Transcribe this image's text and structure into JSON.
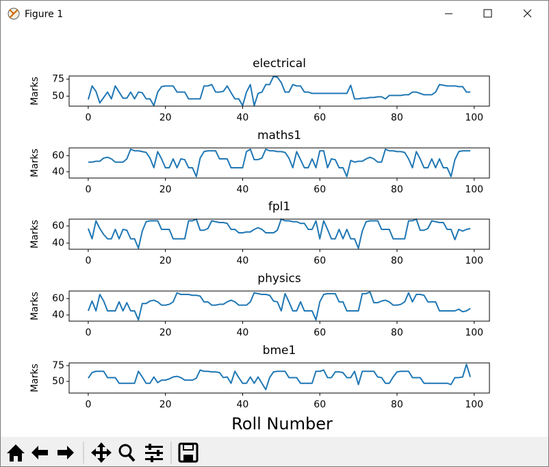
{
  "window": {
    "title": "Figure 1"
  },
  "chart_data": [
    {
      "type": "line",
      "title": "electrical",
      "y_label": "Marks",
      "color": "#1f77b4",
      "x": [
        0,
        1,
        2,
        3,
        4,
        5,
        6,
        7,
        8,
        9,
        10,
        11,
        12,
        13,
        14,
        15,
        16,
        17,
        18,
        19,
        20,
        21,
        22,
        23,
        24,
        25,
        26,
        27,
        28,
        29,
        30,
        31,
        32,
        33,
        34,
        35,
        36,
        37,
        38,
        39,
        40,
        41,
        42,
        43,
        44,
        45,
        46,
        47,
        48,
        49,
        50,
        51,
        52,
        53,
        54,
        55,
        56,
        57,
        58,
        59,
        60,
        61,
        62,
        63,
        64,
        65,
        66,
        67,
        68,
        69,
        70,
        71,
        72,
        73,
        74,
        75,
        76,
        77,
        78,
        79,
        80,
        81,
        82,
        83,
        84,
        85,
        86,
        87,
        88,
        89,
        90,
        91,
        92,
        93,
        94,
        95,
        96,
        97,
        98,
        99
      ],
      "values": [
        45,
        65,
        57,
        40,
        48,
        56,
        46,
        65,
        56,
        47,
        47,
        56,
        46,
        56,
        55,
        46,
        46,
        36,
        56,
        64,
        65,
        65,
        65,
        56,
        56,
        56,
        46,
        46,
        46,
        46,
        65,
        65,
        67,
        56,
        56,
        57,
        65,
        55,
        46,
        46,
        36,
        56,
        67,
        36,
        54,
        56,
        67,
        67,
        79,
        78,
        70,
        56,
        56,
        67,
        65,
        65,
        56,
        56,
        54,
        54,
        54,
        54,
        54,
        54,
        54,
        54,
        54,
        54,
        66,
        46,
        46,
        47,
        47,
        48,
        48,
        49,
        49,
        46,
        51,
        51,
        51,
        51,
        52,
        52,
        56,
        56,
        54,
        52,
        52,
        52,
        56,
        67,
        66,
        65,
        65,
        65,
        64,
        64,
        56,
        56
      ],
      "xlim": [
        -4.95,
        103.95
      ],
      "xticks": [
        0,
        20,
        40,
        60,
        80,
        100
      ],
      "ylim": [
        35.3,
        79.6
      ],
      "yticks": [
        50,
        75
      ]
    },
    {
      "type": "line",
      "title": "maths1",
      "y_label": "Marks",
      "color": "#1f77b4",
      "x": [
        0,
        1,
        2,
        3,
        4,
        5,
        6,
        7,
        8,
        9,
        10,
        11,
        12,
        13,
        14,
        15,
        16,
        17,
        18,
        19,
        20,
        21,
        22,
        23,
        24,
        25,
        26,
        27,
        28,
        29,
        30,
        31,
        32,
        33,
        34,
        35,
        36,
        37,
        38,
        39,
        40,
        41,
        42,
        43,
        44,
        45,
        46,
        47,
        48,
        49,
        50,
        51,
        52,
        53,
        54,
        55,
        56,
        57,
        58,
        59,
        60,
        61,
        62,
        63,
        64,
        65,
        66,
        67,
        68,
        69,
        70,
        71,
        72,
        73,
        74,
        75,
        76,
        77,
        78,
        79,
        80,
        81,
        82,
        83,
        84,
        85,
        86,
        87,
        88,
        89,
        90,
        91,
        92,
        93,
        94,
        95,
        96,
        97,
        98,
        99
      ],
      "values": [
        52,
        52,
        53,
        53,
        57,
        58,
        56,
        52,
        52,
        52,
        56,
        68,
        66,
        66,
        65,
        64,
        57,
        45,
        65,
        56,
        45,
        45,
        56,
        45,
        56,
        55,
        45,
        45,
        34,
        57,
        65,
        66,
        66,
        66,
        56,
        56,
        56,
        45,
        45,
        45,
        45,
        65,
        68,
        55,
        55,
        57,
        68,
        66,
        66,
        65,
        65,
        64,
        57,
        45,
        65,
        55,
        45,
        45,
        56,
        45,
        66,
        66,
        45,
        56,
        55,
        45,
        45,
        34,
        54,
        52,
        53,
        53,
        56,
        58,
        56,
        52,
        52,
        68,
        66,
        66,
        65,
        65,
        64,
        56,
        45,
        65,
        56,
        45,
        45,
        56,
        45,
        56,
        45,
        45,
        34,
        55,
        65,
        66,
        66,
        66
      ],
      "xlim": [
        -4.95,
        103.95
      ],
      "xticks": [
        0,
        20,
        40,
        60,
        80,
        100
      ],
      "ylim": [
        32.2,
        69.6
      ],
      "yticks": [
        40,
        60
      ]
    },
    {
      "type": "line",
      "title": "fpl1",
      "y_label": "Marks",
      "color": "#1f77b4",
      "x": [
        0,
        1,
        2,
        3,
        4,
        5,
        6,
        7,
        8,
        9,
        10,
        11,
        12,
        13,
        14,
        15,
        16,
        17,
        18,
        19,
        20,
        21,
        22,
        23,
        24,
        25,
        26,
        27,
        28,
        29,
        30,
        31,
        32,
        33,
        34,
        35,
        36,
        37,
        38,
        39,
        40,
        41,
        42,
        43,
        44,
        45,
        46,
        47,
        48,
        49,
        50,
        51,
        52,
        53,
        54,
        55,
        56,
        57,
        58,
        59,
        60,
        61,
        62,
        63,
        64,
        65,
        66,
        67,
        68,
        69,
        70,
        71,
        72,
        73,
        74,
        75,
        76,
        77,
        78,
        79,
        80,
        81,
        82,
        83,
        84,
        85,
        86,
        87,
        88,
        89,
        90,
        91,
        92,
        93,
        94,
        95,
        96,
        97,
        98,
        99
      ],
      "values": [
        57,
        45,
        66,
        57,
        50,
        45,
        45,
        56,
        45,
        56,
        55,
        45,
        45,
        34,
        54,
        65,
        66,
        66,
        66,
        56,
        56,
        56,
        45,
        45,
        45,
        45,
        66,
        66,
        68,
        55,
        55,
        57,
        66,
        65,
        64,
        64,
        63,
        56,
        56,
        52,
        52,
        53,
        53,
        56,
        58,
        56,
        52,
        52,
        52,
        55,
        68,
        66,
        66,
        65,
        65,
        63,
        63,
        56,
        56,
        66,
        45,
        66,
        56,
        45,
        45,
        56,
        45,
        56,
        45,
        45,
        34,
        54,
        65,
        66,
        66,
        66,
        56,
        56,
        56,
        45,
        45,
        45,
        45,
        66,
        66,
        68,
        55,
        55,
        57,
        66,
        65,
        64,
        64,
        56,
        56,
        44,
        56,
        54,
        56,
        57
      ],
      "xlim": [
        -4.95,
        103.95
      ],
      "xticks": [
        0,
        20,
        40,
        60,
        80,
        100
      ],
      "ylim": [
        32.8,
        68
      ],
      "yticks": [
        40,
        60
      ]
    },
    {
      "type": "line",
      "title": "physics",
      "y_label": "Marks",
      "color": "#1f77b4",
      "x": [
        0,
        1,
        2,
        3,
        4,
        5,
        6,
        7,
        8,
        9,
        10,
        11,
        12,
        13,
        14,
        15,
        16,
        17,
        18,
        19,
        20,
        21,
        22,
        23,
        24,
        25,
        26,
        27,
        28,
        29,
        30,
        31,
        32,
        33,
        34,
        35,
        36,
        37,
        38,
        39,
        40,
        41,
        42,
        43,
        44,
        45,
        46,
        47,
        48,
        49,
        50,
        51,
        52,
        53,
        54,
        55,
        56,
        57,
        58,
        59,
        60,
        61,
        62,
        63,
        64,
        65,
        66,
        67,
        68,
        69,
        70,
        71,
        72,
        73,
        74,
        75,
        76,
        77,
        78,
        79,
        80,
        81,
        82,
        83,
        84,
        85,
        86,
        87,
        88,
        89,
        90,
        91,
        92,
        93,
        94,
        95,
        96,
        97,
        98,
        99
      ],
      "values": [
        45,
        57,
        45,
        65,
        57,
        45,
        45,
        45,
        56,
        45,
        55,
        45,
        45,
        34,
        54,
        54,
        57,
        58,
        56,
        52,
        52,
        53,
        56,
        67,
        65,
        65,
        65,
        64,
        64,
        63,
        56,
        56,
        52,
        52,
        53,
        53,
        56,
        58,
        56,
        52,
        52,
        52,
        56,
        67,
        66,
        65,
        65,
        64,
        57,
        56,
        45,
        66,
        56,
        45,
        45,
        56,
        45,
        45,
        45,
        34,
        56,
        65,
        66,
        66,
        66,
        56,
        56,
        45,
        45,
        45,
        45,
        66,
        66,
        68,
        55,
        55,
        57,
        58,
        56,
        52,
        52,
        53,
        56,
        67,
        56,
        65,
        65,
        64,
        56,
        56,
        56,
        45,
        45,
        45,
        45,
        45,
        47,
        44,
        45,
        48
      ],
      "xlim": [
        -4.95,
        103.95
      ],
      "xticks": [
        0,
        20,
        40,
        60,
        80,
        100
      ],
      "ylim": [
        32.5,
        69.2
      ],
      "yticks": [
        40,
        60
      ]
    },
    {
      "type": "line",
      "title": "bme1",
      "y_label": "Marks",
      "x_label": "Roll Number",
      "color": "#1f77b4",
      "x": [
        0,
        1,
        2,
        3,
        4,
        5,
        6,
        7,
        8,
        9,
        10,
        11,
        12,
        13,
        14,
        15,
        16,
        17,
        18,
        19,
        20,
        21,
        22,
        23,
        24,
        25,
        26,
        27,
        28,
        29,
        30,
        31,
        32,
        33,
        34,
        35,
        36,
        37,
        38,
        39,
        40,
        41,
        42,
        43,
        44,
        45,
        46,
        47,
        48,
        49,
        50,
        51,
        52,
        53,
        54,
        55,
        56,
        57,
        58,
        59,
        60,
        61,
        62,
        63,
        64,
        65,
        66,
        67,
        68,
        69,
        70,
        71,
        72,
        73,
        74,
        75,
        76,
        77,
        78,
        79,
        80,
        81,
        82,
        83,
        84,
        85,
        86,
        87,
        88,
        89,
        90,
        91,
        92,
        93,
        94,
        95,
        96,
        97,
        98,
        99
      ],
      "values": [
        55,
        64,
        66,
        66,
        66,
        56,
        56,
        56,
        47,
        47,
        47,
        47,
        47,
        66,
        57,
        47,
        47,
        57,
        48,
        52,
        52,
        54,
        57,
        58,
        56,
        52,
        52,
        52,
        55,
        68,
        66,
        66,
        65,
        65,
        64,
        56,
        57,
        47,
        66,
        56,
        47,
        47,
        57,
        47,
        57,
        47,
        37,
        56,
        65,
        66,
        66,
        66,
        56,
        56,
        56,
        47,
        47,
        47,
        47,
        66,
        66,
        68,
        56,
        56,
        65,
        65,
        64,
        56,
        56,
        66,
        45,
        66,
        66,
        66,
        66,
        57,
        56,
        47,
        47,
        57,
        65,
        66,
        66,
        66,
        56,
        56,
        56,
        47,
        47,
        47,
        47,
        47,
        47,
        47,
        45,
        56,
        56,
        57,
        77,
        57
      ],
      "xlim": [
        -4.95,
        103.95
      ],
      "xticks": [
        0,
        20,
        40,
        60,
        80,
        100
      ],
      "ylim": [
        31.5,
        79.3
      ],
      "yticks": [
        50,
        75
      ]
    }
  ]
}
